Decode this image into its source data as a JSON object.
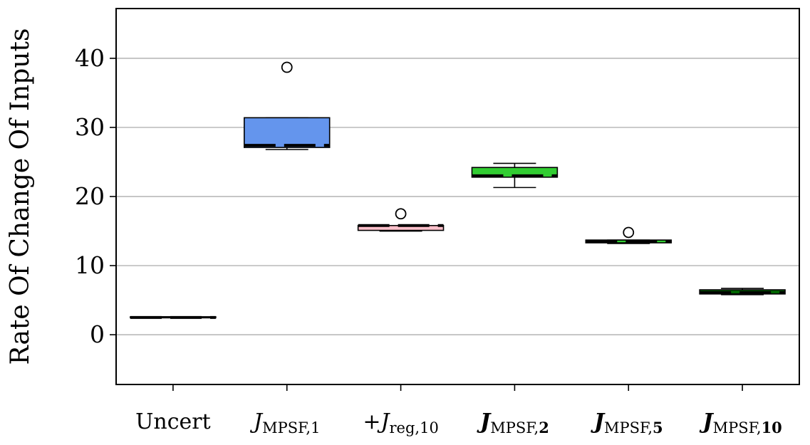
{
  "chart_data": {
    "type": "box",
    "title": "",
    "xlabel": "",
    "ylabel": "Rate Of Change Of Inputs",
    "ylim": [
      0,
      40
    ],
    "yticks": [
      0,
      10,
      20,
      30,
      40
    ],
    "grid": "horizontal",
    "categories": [
      {
        "parts": [
          {
            "t": "Uncert"
          }
        ]
      },
      {
        "parts": [
          {
            "t": "J",
            "style": "it"
          },
          {
            "t": "MPSF,1",
            "sub": true
          }
        ]
      },
      {
        "parts": [
          {
            "t": "+"
          },
          {
            "t": "J",
            "style": "it"
          },
          {
            "t": "reg,10",
            "sub": true
          }
        ]
      },
      {
        "parts": [
          {
            "t": "J",
            "style": "it bold"
          },
          {
            "t": "MPSF,",
            "sub": true
          },
          {
            "t": "2",
            "sub": true,
            "style": "bold"
          }
        ]
      },
      {
        "parts": [
          {
            "t": "J",
            "style": "it bold"
          },
          {
            "t": "MPSF,",
            "sub": true
          },
          {
            "t": "5",
            "sub": true,
            "style": "bold"
          }
        ]
      },
      {
        "parts": [
          {
            "t": "J",
            "style": "it bold"
          },
          {
            "t": "MPSF,",
            "sub": true
          },
          {
            "t": "10",
            "sub": true,
            "style": "bold"
          }
        ]
      }
    ],
    "boxes": [
      {
        "min": 2.5,
        "q1": 2.5,
        "median": 2.5,
        "q3": 2.6,
        "max": 2.6,
        "outliers": [],
        "color": "#1a1a1a"
      },
      {
        "min": 26.8,
        "q1": 27.1,
        "median": 27.4,
        "q3": 31.4,
        "max": 31.4,
        "outliers": [
          38.7
        ],
        "color": "#6495ED"
      },
      {
        "min": 15.0,
        "q1": 15.1,
        "median": 15.8,
        "q3": 15.8,
        "max": 15.8,
        "outliers": [
          17.5
        ],
        "color": "#FFC0CB"
      },
      {
        "min": 21.3,
        "q1": 22.8,
        "median": 23.0,
        "q3": 24.2,
        "max": 24.8,
        "outliers": [],
        "color": "#32CD32"
      },
      {
        "min": 13.2,
        "q1": 13.3,
        "median": 13.5,
        "q3": 13.7,
        "max": 13.7,
        "outliers": [
          14.8
        ],
        "color": "#32CD32"
      },
      {
        "min": 5.8,
        "q1": 5.9,
        "median": 6.1,
        "q3": 6.5,
        "max": 6.7,
        "outliers": [],
        "color": "#006400"
      }
    ]
  }
}
